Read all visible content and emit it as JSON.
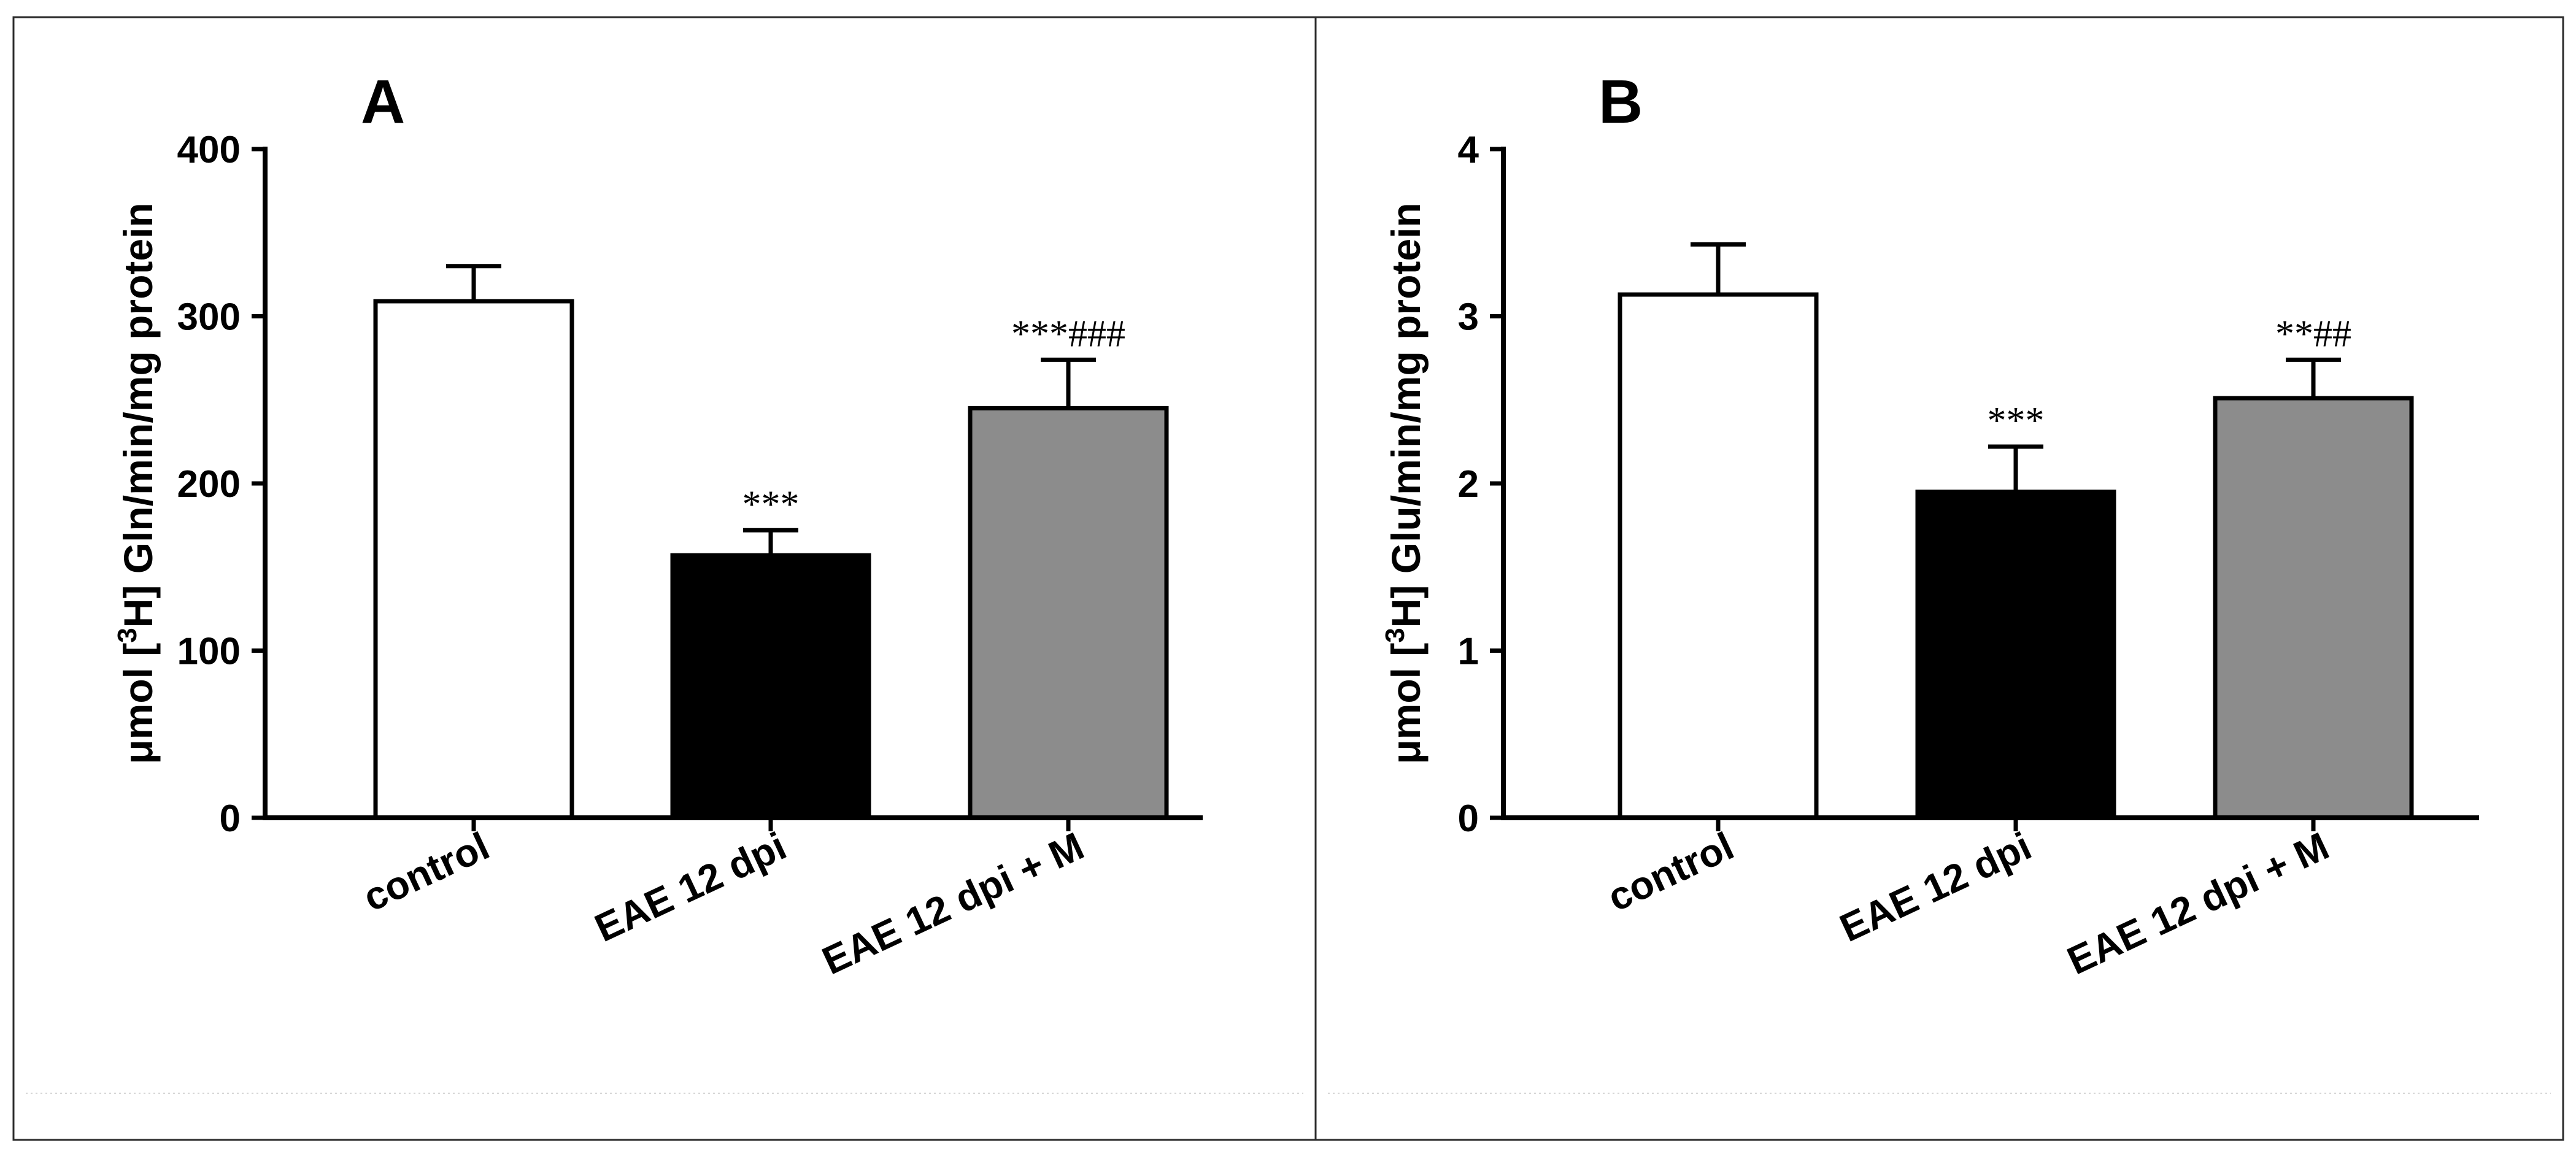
{
  "chart_data": [
    {
      "panel": "A",
      "type": "bar",
      "ylabel_main": "μmol [",
      "ylabel_sup": "3",
      "ylabel_rest": "H] Gln/min/mg protein",
      "ylim": [
        0,
        400
      ],
      "yticks": [
        0,
        100,
        200,
        300,
        400
      ],
      "yticks_text": [
        "0",
        "100",
        "200",
        "300",
        "400"
      ],
      "categories": [
        "control",
        "EAE 12 dpi",
        "EAE 12 dpi + M"
      ],
      "values": [
        309,
        157,
        245
      ],
      "errors": [
        21,
        15,
        29
      ],
      "colors": [
        "#ffffff",
        "#000000",
        "#8c8c8c"
      ],
      "annotations": [
        "",
        "***",
        "***###"
      ]
    },
    {
      "panel": "B",
      "type": "bar",
      "ylabel_main": "μmol [",
      "ylabel_sup": "3",
      "ylabel_rest": "H] Glu/min/mg protein",
      "ylim": [
        0,
        4
      ],
      "yticks": [
        0,
        1,
        2,
        3,
        4
      ],
      "yticks_text": [
        "0",
        "1",
        "2",
        "3",
        "4"
      ],
      "categories": [
        "control",
        "EAE 12 dpi",
        "EAE 12 dpi + M"
      ],
      "values": [
        3.13,
        1.95,
        2.51
      ],
      "errors": [
        0.3,
        0.27,
        0.23
      ],
      "colors": [
        "#ffffff",
        "#000000",
        "#8c8c8c"
      ],
      "annotations": [
        "",
        "***",
        "**##"
      ]
    }
  ]
}
